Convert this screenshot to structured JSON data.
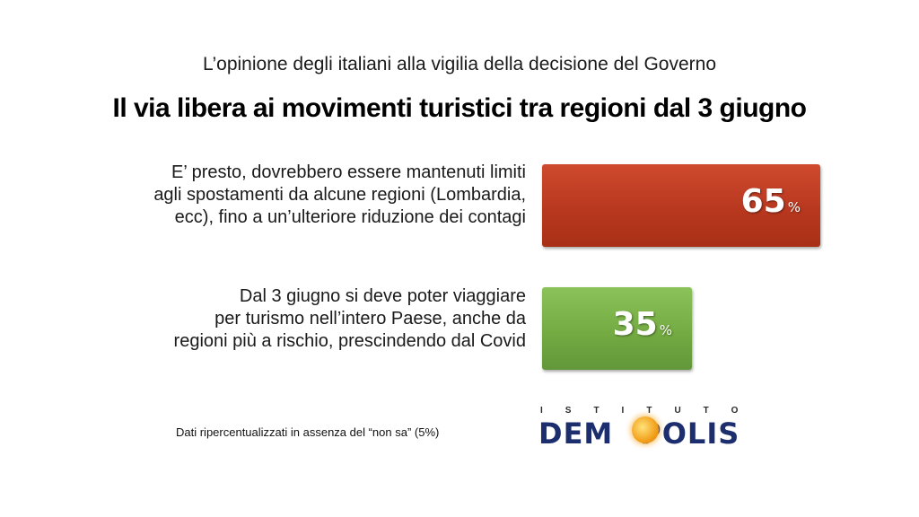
{
  "header": {
    "subtitle": "L’opinione degli italiani alla vigilia della decisione del Governo",
    "title": "Il via libera ai movimenti turistici tra regioni dal 3 giugno"
  },
  "rows": [
    {
      "line1": "E’ presto, dovrebbero essere mantenuti limiti",
      "line2": "agli spostamenti da alcune regioni (Lombardia,",
      "line3": "ecc), fino a un’ulteriore riduzione dei contagi",
      "value": "65",
      "unit": "%",
      "color": "#b8381f"
    },
    {
      "line1": "Dal 3 giugno si deve poter viaggiare",
      "line2": "per turismo nell’intero Paese, anche da",
      "line3": "regioni più a rischio, prescindendo dal Covid",
      "value": "35",
      "unit": "%",
      "color": "#74ab42"
    }
  ],
  "chart_data": {
    "type": "bar",
    "orientation": "horizontal",
    "title": "Il via libera ai movimenti turistici tra regioni dal 3 giugno",
    "subtitle": "L’opinione degli italiani alla vigilia della decisione del Governo",
    "categories": [
      "E’ presto, dovrebbero essere mantenuti limiti agli spostamenti da alcune regioni (Lombardia, ecc), fino a un’ulteriore riduzione dei contagi",
      "Dal 3 giugno si deve poter viaggiare per turismo nell’intero Paese, anche da regioni più a rischio, prescindendo dal Covid"
    ],
    "values": [
      65,
      35
    ],
    "unit": "%",
    "colors": [
      "#b8381f",
      "#74ab42"
    ],
    "xlim": [
      0,
      65
    ],
    "grid": false,
    "legend": "none"
  },
  "footer": {
    "note": "Dati ripercentualizzati in assenza del “non sa” (5%)",
    "logo_top": "ISTITUTO",
    "logo_left": "DEM",
    "logo_right": "POLIS"
  }
}
